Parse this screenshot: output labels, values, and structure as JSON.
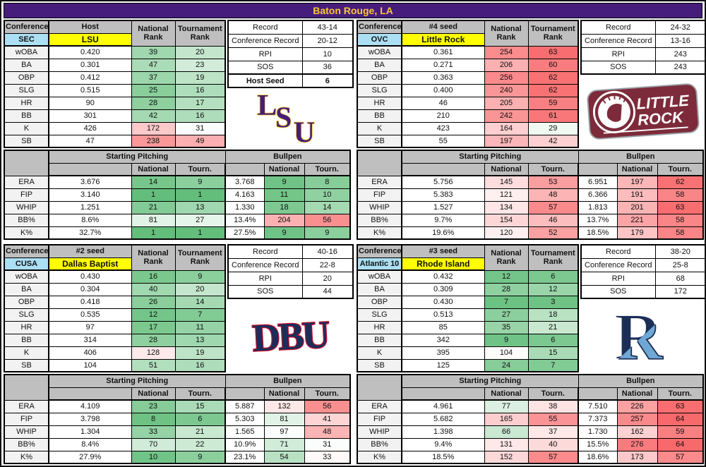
{
  "title": "Baton Rouge, LA",
  "colors": {
    "title_bg": "#461D7C",
    "title_text": "#FDC82F",
    "header_grey": "#BFBFBF",
    "label_grey": "#F2F2F2",
    "conference_blue": "#ABDFF4",
    "team_yellow": "#FFFF00",
    "scale_green": "#63BE7B",
    "scale_white": "#FFFFFF",
    "scale_red": "#F8696B"
  },
  "labels": {
    "conference": "Conference",
    "national_rank": "National Rank",
    "tournament_rank": "Tournament Rank",
    "record": "Record",
    "conference_record": "Conference Record",
    "rpi": "RPI",
    "sos": "SOS",
    "host_seed": "Host Seed",
    "starting_pitching": "Starting Pitching",
    "bullpen": "Bullpen",
    "national": "National",
    "tourn": "Tourn."
  },
  "batting_stats": [
    "wOBA",
    "BA",
    "OBP",
    "SLG",
    "HR",
    "BB",
    "K",
    "SB"
  ],
  "pitching_stats": [
    "ERA",
    "FIP",
    "WHIP",
    "BB%",
    "K%"
  ],
  "rank_scale": {
    "national_mid": 100,
    "national_max": 300,
    "tournament_mid": 32,
    "tournament_max": 64
  },
  "teams": [
    {
      "id": "lsu",
      "conference": "SEC",
      "seed_label": "Host",
      "name": "LSU",
      "record": "43-14",
      "conference_record": "20-12",
      "rpi": "10",
      "sos": "36",
      "host_seed": "6",
      "logo_colors": {
        "primary": "#461D7C",
        "secondary": "#FDD023"
      },
      "batting": [
        [
          "0.420",
          39,
          20
        ],
        [
          "0.301",
          47,
          23
        ],
        [
          "0.412",
          37,
          19
        ],
        [
          "0.515",
          25,
          16
        ],
        [
          "90",
          28,
          17
        ],
        [
          "301",
          42,
          16
        ],
        [
          "426",
          172,
          31
        ],
        [
          "47",
          238,
          49
        ]
      ],
      "starting": [
        [
          "3.676",
          14,
          9
        ],
        [
          "3.140",
          1,
          1
        ],
        [
          "1.251",
          21,
          13
        ],
        [
          "8.6%",
          81,
          27
        ],
        [
          "32.7%",
          1,
          1
        ]
      ],
      "bullpen": [
        [
          "3.768",
          9,
          8
        ],
        [
          "4.163",
          11,
          10
        ],
        [
          "1.330",
          18,
          14
        ],
        [
          "13.4%",
          204,
          56
        ],
        [
          "27.5%",
          9,
          9
        ]
      ]
    },
    {
      "id": "little-rock",
      "conference": "OVC",
      "seed_label": "#4 seed",
      "name": "Little Rock",
      "record": "24-32",
      "conference_record": "13-16",
      "rpi": "243",
      "sos": "243",
      "logo_colors": {
        "primary": "#7D2B3A",
        "secondary": "#FFFFFF"
      },
      "batting": [
        [
          "0.361",
          254,
          63
        ],
        [
          "0.271",
          206,
          60
        ],
        [
          "0.363",
          256,
          62
        ],
        [
          "0.400",
          240,
          62
        ],
        [
          "46",
          205,
          59
        ],
        [
          "210",
          242,
          61
        ],
        [
          "423",
          164,
          29
        ],
        [
          "55",
          197,
          42
        ]
      ],
      "starting": [
        [
          "5.756",
          145,
          53
        ],
        [
          "5.383",
          121,
          48
        ],
        [
          "1.527",
          134,
          57
        ],
        [
          "9.7%",
          154,
          46
        ],
        [
          "19.6%",
          120,
          52
        ]
      ],
      "bullpen": [
        [
          "6.951",
          197,
          62
        ],
        [
          "6.366",
          191,
          58
        ],
        [
          "1.813",
          201,
          63
        ],
        [
          "13.7%",
          221,
          58
        ],
        [
          "18.5%",
          179,
          58
        ]
      ]
    },
    {
      "id": "dallas-baptist",
      "conference": "CUSA",
      "seed_label": "#2 seed",
      "name": "Dallas Baptist",
      "record": "40-16",
      "conference_record": "22-8",
      "rpi": "20",
      "sos": "44",
      "logo_colors": {
        "primary": "#1C2D5A",
        "secondary": "#C8102E"
      },
      "batting": [
        [
          "0.430",
          16,
          9
        ],
        [
          "0.304",
          40,
          20
        ],
        [
          "0.418",
          26,
          14
        ],
        [
          "0.535",
          12,
          7
        ],
        [
          "97",
          17,
          11
        ],
        [
          "314",
          28,
          13
        ],
        [
          "406",
          128,
          19
        ],
        [
          "104",
          51,
          16
        ]
      ],
      "starting": [
        [
          "4.109",
          23,
          15
        ],
        [
          "3.798",
          8,
          6
        ],
        [
          "1.304",
          33,
          21
        ],
        [
          "8.4%",
          70,
          22
        ],
        [
          "27.9%",
          10,
          9
        ]
      ],
      "bullpen": [
        [
          "5.887",
          132,
          56
        ],
        [
          "5.303",
          81,
          41
        ],
        [
          "1.565",
          97,
          48
        ],
        [
          "10.9%",
          71,
          31
        ],
        [
          "23.1%",
          54,
          33
        ]
      ]
    },
    {
      "id": "rhode-island",
      "conference": "Atlantic 10",
      "seed_label": "#3 seed",
      "name": "Rhode Island",
      "record": "38-20",
      "conference_record": "25-8",
      "rpi": "68",
      "sos": "172",
      "logo_colors": {
        "primary": "#1B2E57",
        "secondary": "#6FA8D4"
      },
      "batting": [
        [
          "0.432",
          12,
          6
        ],
        [
          "0.309",
          28,
          12
        ],
        [
          "0.430",
          7,
          3
        ],
        [
          "0.513",
          27,
          18
        ],
        [
          "85",
          35,
          21
        ],
        [
          "342",
          9,
          6
        ],
        [
          "395",
          104,
          15
        ],
        [
          "125",
          24,
          7
        ]
      ],
      "starting": [
        [
          "4.961",
          77,
          38
        ],
        [
          "5.682",
          165,
          55
        ],
        [
          "1.398",
          66,
          37
        ],
        [
          "9.4%",
          131,
          40
        ],
        [
          "18.5%",
          152,
          57
        ]
      ],
      "bullpen": [
        [
          "7.510",
          226,
          63
        ],
        [
          "7.373",
          257,
          64
        ],
        [
          "1.730",
          162,
          59
        ],
        [
          "15.5%",
          276,
          64
        ],
        [
          "18.6%",
          173,
          57
        ]
      ]
    }
  ]
}
